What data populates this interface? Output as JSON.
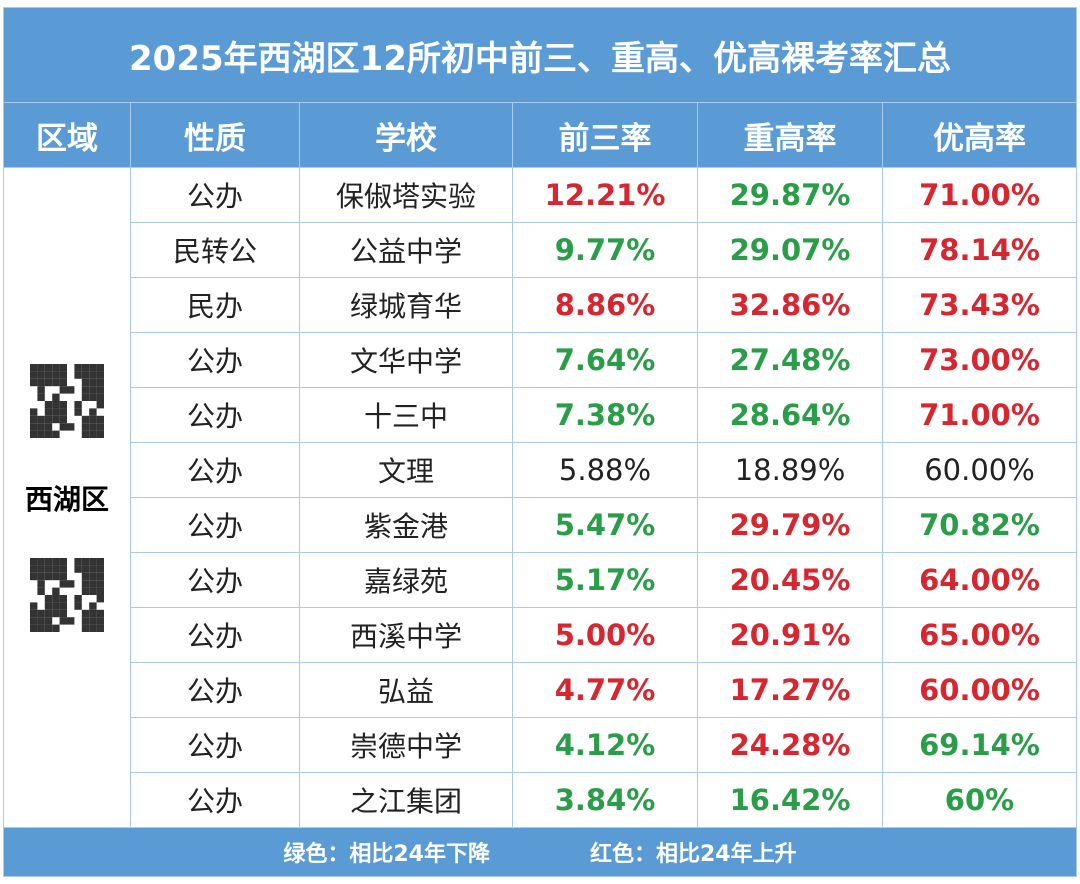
{
  "title": "2025年西湖区12所初中前三、重高、优高裸考率汇总",
  "header": [
    "区域",
    "性质",
    "学校",
    "前三率",
    "重高率",
    "优高率"
  ],
  "region": "西湖区",
  "rows": [
    {
      "type": "公办",
      "school": "保俶塔实验",
      "rates": [
        {
          "text": "12.21%",
          "color": "#d7262f"
        },
        {
          "text": "29.87%",
          "color": "#2a9d48"
        },
        {
          "text": "71.00%",
          "color": "#d7262f"
        }
      ]
    },
    {
      "type": "民转公",
      "school": "公益中学",
      "rates": [
        {
          "text": "9.77%",
          "color": "#2a9d48"
        },
        {
          "text": "29.07%",
          "color": "#2a9d48"
        },
        {
          "text": "78.14%",
          "color": "#d7262f"
        }
      ]
    },
    {
      "type": "民办",
      "school": "绿城育华",
      "rates": [
        {
          "text": "8.86%",
          "color": "#d7262f"
        },
        {
          "text": "32.86%",
          "color": "#d7262f"
        },
        {
          "text": "73.43%",
          "color": "#d7262f"
        }
      ]
    },
    {
      "type": "公办",
      "school": "文华中学",
      "rates": [
        {
          "text": "7.64%",
          "color": "#2a9d48"
        },
        {
          "text": "27.48%",
          "color": "#2a9d48"
        },
        {
          "text": "73.00%",
          "color": "#d7262f"
        }
      ]
    },
    {
      "type": "公办",
      "school": "十三中",
      "rates": [
        {
          "text": "7.38%",
          "color": "#2a9d48"
        },
        {
          "text": "28.64%",
          "color": "#2a9d48"
        },
        {
          "text": "71.00%",
          "color": "#d7262f"
        }
      ]
    },
    {
      "type": "公办",
      "school": "文理",
      "rates": [
        {
          "text": "5.88%",
          "color": "#222222"
        },
        {
          "text": "18.89%",
          "color": "#222222"
        },
        {
          "text": "60.00%",
          "color": "#222222"
        }
      ]
    },
    {
      "type": "公办",
      "school": "紫金港",
      "rates": [
        {
          "text": "5.47%",
          "color": "#2a9d48"
        },
        {
          "text": "29.79%",
          "color": "#d7262f"
        },
        {
          "text": "70.82%",
          "color": "#2a9d48"
        }
      ]
    },
    {
      "type": "公办",
      "school": "嘉绿苑",
      "rates": [
        {
          "text": "5.17%",
          "color": "#2a9d48"
        },
        {
          "text": "20.45%",
          "color": "#d7262f"
        },
        {
          "text": "64.00%",
          "color": "#d7262f"
        }
      ]
    },
    {
      "type": "公办",
      "school": "西溪中学",
      "rates": [
        {
          "text": "5.00%",
          "color": "#d7262f"
        },
        {
          "text": "20.91%",
          "color": "#d7262f"
        },
        {
          "text": "65.00%",
          "color": "#d7262f"
        }
      ]
    },
    {
      "type": "公办",
      "school": "弘益",
      "rates": [
        {
          "text": "4.77%",
          "color": "#d7262f"
        },
        {
          "text": "17.27%",
          "color": "#d7262f"
        },
        {
          "text": "60.00%",
          "color": "#d7262f"
        }
      ]
    },
    {
      "type": "公办",
      "school": "崇德中学",
      "rates": [
        {
          "text": "4.12%",
          "color": "#2a9d48"
        },
        {
          "text": "24.28%",
          "color": "#d7262f"
        },
        {
          "text": "69.14%",
          "color": "#2a9d48"
        }
      ]
    },
    {
      "type": "公办",
      "school": "之江集团",
      "rates": [
        {
          "text": "3.84%",
          "color": "#2a9d48"
        },
        {
          "text": "16.42%",
          "color": "#2a9d48"
        },
        {
          "text": "60%",
          "color": "#2a9d48"
        }
      ]
    }
  ],
  "legend": [
    "绿色：相比24年下降",
    "红色：相比24年上升"
  ]
}
